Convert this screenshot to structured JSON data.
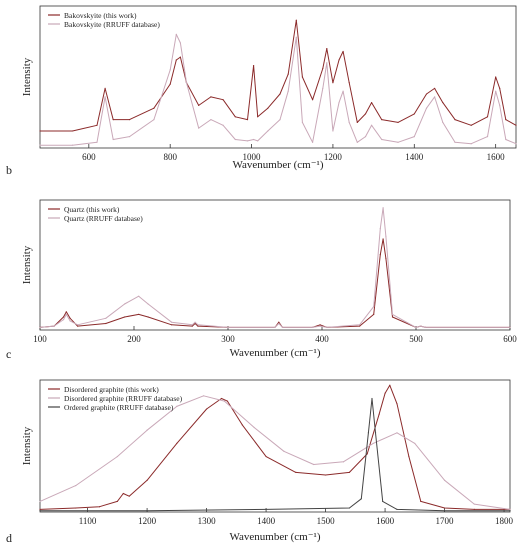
{
  "chart_data": [
    {
      "type": "line",
      "panel_label": "b",
      "xlabel": "Wavenumber (cm⁻¹)",
      "ylabel": "Intensity",
      "xlim": [
        480,
        1650
      ],
      "ylim": [
        0,
        1.0
      ],
      "xticks": [
        600,
        800,
        1000,
        1200,
        1400,
        1600
      ],
      "legend_position": "top-left",
      "series": [
        {
          "name": "Bakovskyite (this work)",
          "color": "#8b2a2a",
          "x": [
            480,
            560,
            620,
            640,
            660,
            700,
            760,
            800,
            815,
            825,
            840,
            870,
            900,
            930,
            960,
            990,
            1005,
            1015,
            1040,
            1070,
            1090,
            1110,
            1125,
            1150,
            1175,
            1185,
            1200,
            1215,
            1225,
            1240,
            1260,
            1280,
            1295,
            1320,
            1360,
            1400,
            1430,
            1450,
            1470,
            1500,
            1540,
            1580,
            1600,
            1610,
            1625,
            1650
          ],
          "y": [
            0.12,
            0.12,
            0.16,
            0.42,
            0.2,
            0.2,
            0.28,
            0.45,
            0.62,
            0.64,
            0.46,
            0.3,
            0.36,
            0.34,
            0.22,
            0.2,
            0.58,
            0.22,
            0.28,
            0.38,
            0.52,
            0.9,
            0.5,
            0.34,
            0.56,
            0.7,
            0.46,
            0.62,
            0.68,
            0.46,
            0.18,
            0.24,
            0.32,
            0.2,
            0.18,
            0.24,
            0.38,
            0.42,
            0.32,
            0.2,
            0.16,
            0.22,
            0.5,
            0.42,
            0.2,
            0.16
          ]
        },
        {
          "name": "Bakovskyite (RRUFF database)",
          "color": "#c9a8b8",
          "x": [
            480,
            560,
            620,
            640,
            660,
            700,
            760,
            800,
            815,
            825,
            840,
            870,
            900,
            930,
            960,
            990,
            1005,
            1015,
            1040,
            1070,
            1090,
            1110,
            1125,
            1150,
            1175,
            1185,
            1200,
            1215,
            1225,
            1240,
            1260,
            1280,
            1295,
            1320,
            1360,
            1400,
            1430,
            1450,
            1470,
            1500,
            1540,
            1580,
            1600,
            1610,
            1625,
            1650
          ],
          "y": [
            0.02,
            0.02,
            0.04,
            0.36,
            0.06,
            0.08,
            0.2,
            0.55,
            0.8,
            0.74,
            0.46,
            0.14,
            0.2,
            0.16,
            0.06,
            0.05,
            0.06,
            0.05,
            0.12,
            0.2,
            0.4,
            0.78,
            0.18,
            0.04,
            0.42,
            0.6,
            0.12,
            0.32,
            0.4,
            0.18,
            0.04,
            0.08,
            0.16,
            0.06,
            0.04,
            0.08,
            0.28,
            0.36,
            0.18,
            0.04,
            0.03,
            0.08,
            0.4,
            0.3,
            0.06,
            0.03
          ]
        }
      ]
    },
    {
      "type": "line",
      "panel_label": "c",
      "xlabel": "Wavenumber (cm⁻¹)",
      "ylabel": "Intensity",
      "xlim": [
        100,
        600
      ],
      "ylim": [
        0,
        1.0
      ],
      "xticks": [
        100,
        200,
        300,
        400,
        500,
        600
      ],
      "legend_position": "top-left",
      "series": [
        {
          "name": "Quartz (this work)",
          "color": "#8b2a2a",
          "x": [
            100,
            115,
            125,
            128,
            132,
            140,
            170,
            190,
            205,
            215,
            240,
            262,
            265,
            268,
            300,
            350,
            354,
            358,
            390,
            398,
            405,
            440,
            455,
            462,
            465,
            468,
            475,
            500,
            505,
            510,
            600
          ],
          "y": [
            0.02,
            0.03,
            0.1,
            0.14,
            0.09,
            0.03,
            0.05,
            0.1,
            0.12,
            0.1,
            0.04,
            0.03,
            0.05,
            0.03,
            0.02,
            0.02,
            0.06,
            0.02,
            0.02,
            0.04,
            0.02,
            0.03,
            0.12,
            0.58,
            0.7,
            0.55,
            0.1,
            0.02,
            0.03,
            0.02,
            0.02
          ]
        },
        {
          "name": "Quartz (RRUFF database)",
          "color": "#c9a8b8",
          "x": [
            100,
            115,
            125,
            128,
            132,
            140,
            170,
            190,
            205,
            215,
            240,
            262,
            265,
            268,
            300,
            350,
            354,
            358,
            390,
            398,
            405,
            440,
            455,
            462,
            465,
            468,
            475,
            500,
            505,
            510,
            600
          ],
          "y": [
            0.02,
            0.03,
            0.08,
            0.12,
            0.07,
            0.04,
            0.09,
            0.2,
            0.26,
            0.2,
            0.06,
            0.04,
            0.06,
            0.04,
            0.02,
            0.02,
            0.05,
            0.02,
            0.02,
            0.03,
            0.02,
            0.04,
            0.18,
            0.78,
            0.94,
            0.72,
            0.12,
            0.02,
            0.03,
            0.02,
            0.02
          ]
        }
      ]
    },
    {
      "type": "line",
      "panel_label": "d",
      "xlabel": "Wavenumber (cm⁻¹)",
      "ylabel": "Intensity",
      "xlim": [
        1020,
        1810
      ],
      "ylim": [
        0,
        1.0
      ],
      "xticks": [
        1100,
        1200,
        1300,
        1400,
        1500,
        1600,
        1700,
        1800
      ],
      "legend_position": "top-left",
      "series": [
        {
          "name": "Disordered graphite (this work)",
          "color": "#8b2a2a",
          "x": [
            1020,
            1080,
            1120,
            1150,
            1160,
            1170,
            1200,
            1250,
            1300,
            1325,
            1335,
            1360,
            1400,
            1450,
            1500,
            1540,
            1570,
            1590,
            1600,
            1608,
            1620,
            1640,
            1660,
            1700,
            1750,
            1810
          ],
          "y": [
            0.02,
            0.03,
            0.04,
            0.08,
            0.14,
            0.12,
            0.24,
            0.52,
            0.78,
            0.86,
            0.84,
            0.66,
            0.42,
            0.3,
            0.28,
            0.3,
            0.44,
            0.74,
            0.9,
            0.96,
            0.82,
            0.42,
            0.08,
            0.03,
            0.02,
            0.02
          ]
        },
        {
          "name": "Disordered graphite (RRUFF database)",
          "color": "#c9a8b8",
          "x": [
            1020,
            1080,
            1150,
            1200,
            1250,
            1295,
            1330,
            1380,
            1430,
            1480,
            1530,
            1580,
            1620,
            1650,
            1700,
            1750,
            1810
          ],
          "y": [
            0.08,
            0.2,
            0.42,
            0.62,
            0.8,
            0.88,
            0.84,
            0.64,
            0.46,
            0.36,
            0.38,
            0.52,
            0.6,
            0.52,
            0.24,
            0.06,
            0.02
          ]
        },
        {
          "name": "Ordered graphite (RRUFF database)",
          "color": "#444444",
          "x": [
            1020,
            1200,
            1400,
            1540,
            1560,
            1572,
            1578,
            1584,
            1596,
            1620,
            1700,
            1810
          ],
          "y": [
            0.01,
            0.01,
            0.02,
            0.03,
            0.1,
            0.6,
            0.86,
            0.6,
            0.08,
            0.02,
            0.01,
            0.01
          ]
        }
      ]
    }
  ]
}
